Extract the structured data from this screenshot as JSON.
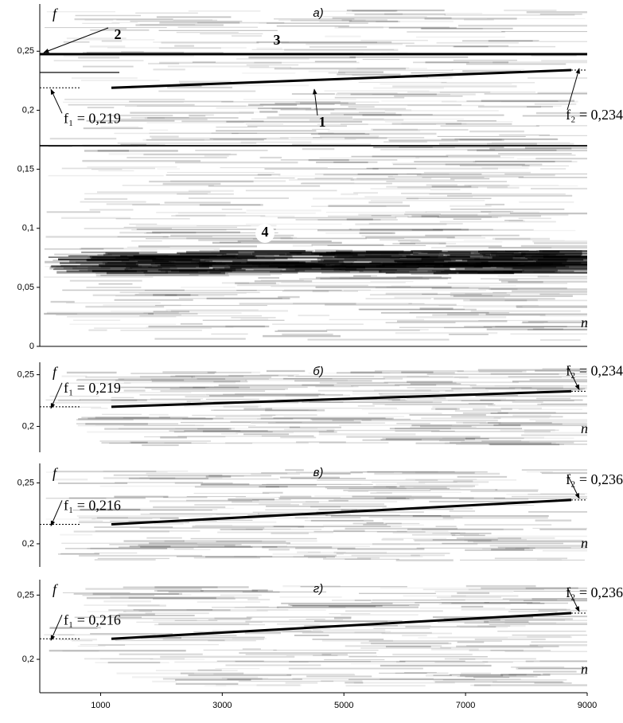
{
  "chart_data": [
    {
      "type": "spectrogram",
      "panel_label": "а)",
      "y_label": "f",
      "x_label": "n",
      "xlim": [
        0,
        9000
      ],
      "ylim": [
        0,
        0.29
      ],
      "yticks": [
        0,
        {
          "value": 0.05,
          "label": "0,05"
        },
        {
          "value": 0.1,
          "label": "0,1"
        },
        {
          "value": 0.15,
          "label": "0,15"
        },
        {
          "value": 0.2,
          "label": "0,2"
        },
        {
          "value": 0.25,
          "label": "0,25"
        }
      ],
      "annotations": [
        {
          "label": "f₁ = 0,219",
          "value": 0.219
        },
        {
          "label": "f₂ = 0,234",
          "value": 0.234
        }
      ],
      "markers": [
        "1",
        "2",
        "3",
        "4"
      ]
    },
    {
      "type": "spectrogram",
      "panel_label": "б)",
      "y_label": "f",
      "x_label": "n",
      "xlim": [
        0,
        9000
      ],
      "ylim": [
        0.175,
        0.262
      ],
      "yticks": [
        {
          "value": 0.2,
          "label": "0,2"
        },
        {
          "value": 0.25,
          "label": "0,25"
        }
      ],
      "annotations": [
        {
          "label": "f₁ = 0,219",
          "value": 0.219
        },
        {
          "label": "f₂ = 0,234",
          "value": 0.234
        }
      ]
    },
    {
      "type": "spectrogram",
      "panel_label": "в)",
      "y_label": "f",
      "x_label": "n",
      "xlim": [
        0,
        9000
      ],
      "ylim": [
        0.181,
        0.266
      ],
      "yticks": [
        {
          "value": 0.2,
          "label": "0,2"
        },
        {
          "value": 0.25,
          "label": "0,25"
        }
      ],
      "annotations": [
        {
          "label": "f₁ = 0,216",
          "value": 0.216
        },
        {
          "label": "f₂ = 0,236",
          "value": 0.236
        }
      ]
    },
    {
      "type": "spectrogram",
      "panel_label": "г)",
      "y_label": "f",
      "x_label": "n",
      "xlim": [
        0,
        9000
      ],
      "ylim": [
        0.174,
        0.262
      ],
      "yticks": [
        {
          "value": 0.2,
          "label": "0,2"
        },
        {
          "value": 0.25,
          "label": "0,25"
        }
      ],
      "xticks": [
        1000,
        3000,
        5000,
        7000,
        9000
      ],
      "annotations": [
        {
          "label": "f₁ = 0,216",
          "value": 0.216
        },
        {
          "label": "f₂ = 0,236",
          "value": 0.236
        }
      ]
    }
  ]
}
